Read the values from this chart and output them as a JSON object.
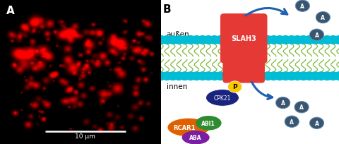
{
  "panel_a_label": "A",
  "panel_b_label": "B",
  "scale_bar_text": "10 μm",
  "außen_text": "außen",
  "innen_text": "innen",
  "slah3_text": "SLAH3",
  "cpk21_text": "CPK21",
  "p_text": "P",
  "rcar1_text": "RCAR1",
  "abi1_text": "ABI1",
  "aba_text": "ABA",
  "a_label": "A",
  "membrane_cyan": "#00bcd4",
  "membrane_green": "#7cb83a",
  "membrane_dark": "#7a3b2e",
  "slah3_color": "#e53935",
  "cpk21_color": "#1a237e",
  "p_color": "#f9c800",
  "rcar1_color": "#e06000",
  "abi1_color": "#2e8b30",
  "aba_color": "#7b1fa2",
  "arrow_color": "#2060b0",
  "ion_bg": "#37474f",
  "ion_border": "#607d8b"
}
